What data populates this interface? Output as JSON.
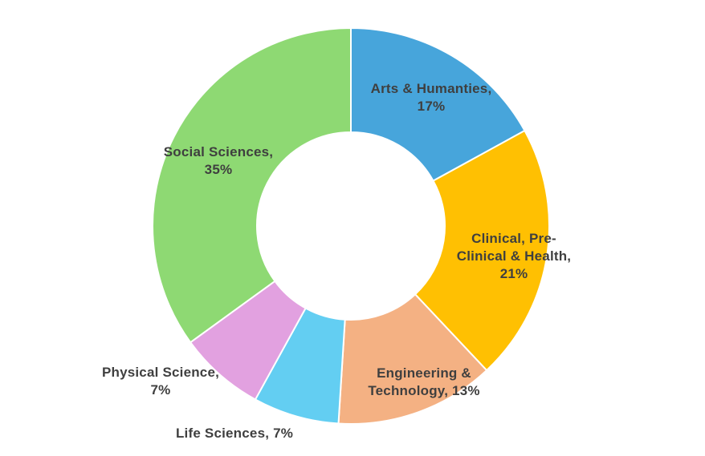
{
  "chart_data": {
    "type": "pie",
    "subtype": "donut",
    "title": "",
    "legend": "none",
    "unit": "%",
    "start_angle_deg": 0,
    "direction": "clockwise",
    "background_color": "#ffffff",
    "label_color": "#3f3f3f",
    "separator_color": "#ffffff",
    "categories": [
      "Arts & Humanties",
      "Clinical, Pre-Clinical & Health",
      "Engineering & Technology",
      "Life Sciences",
      "Physical Science",
      "Social Sciences"
    ],
    "values": [
      17,
      21,
      13,
      7,
      7,
      35
    ],
    "colors": [
      "#47A5DB",
      "#FFC002",
      "#F4B183",
      "#63CEF2",
      "#E2A1E0",
      "#8ED973"
    ],
    "labels": [
      {
        "lines": [
          "Arts & Humanties,",
          "17%"
        ]
      },
      {
        "lines": [
          "Clinical, Pre-",
          "Clinical & Health,",
          "21%"
        ]
      },
      {
        "lines": [
          "Engineering &",
          "Technology, 13%"
        ]
      },
      {
        "lines": [
          "Life Sciences, 7%"
        ]
      },
      {
        "lines": [
          "Physical Science,",
          "7%"
        ]
      },
      {
        "lines": [
          "Social Sciences,",
          "35%"
        ]
      }
    ]
  }
}
